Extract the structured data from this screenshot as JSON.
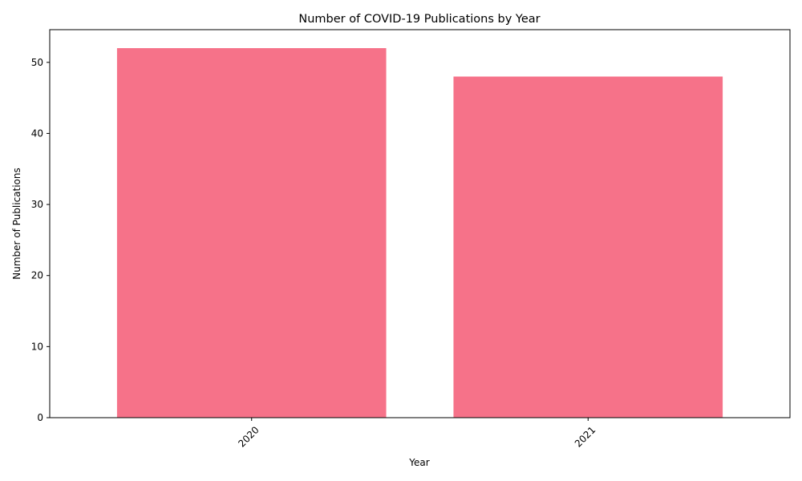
{
  "chart_data": {
    "type": "bar",
    "title": "Number of COVID-19 Publications by Year",
    "xlabel": "Year",
    "ylabel": "Number of Publications",
    "categories": [
      "2020",
      "2021"
    ],
    "values": [
      52,
      48
    ],
    "ylim": [
      0,
      54.6
    ],
    "yticks": [
      0,
      10,
      20,
      30,
      40,
      50
    ],
    "bar_color": "#f67289",
    "grid": false,
    "legend": "none",
    "xtick_rotation_deg": 45
  }
}
